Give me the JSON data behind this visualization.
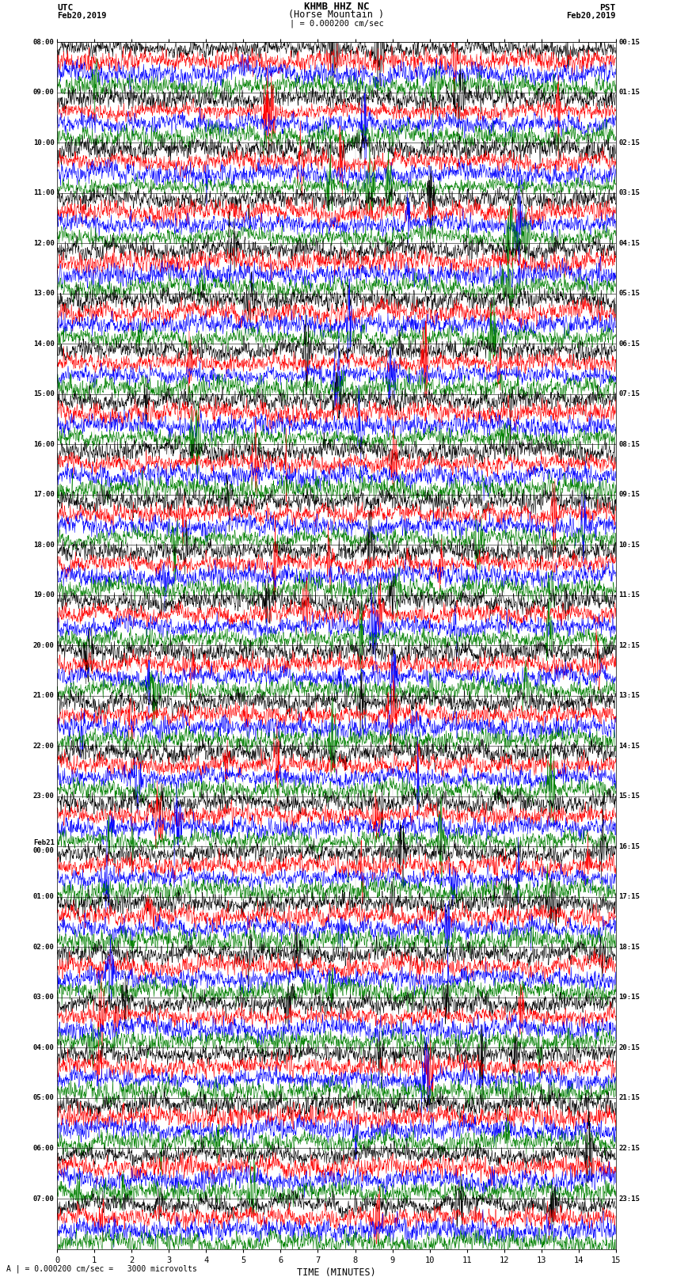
{
  "title_line1": "KHMB HHZ NC",
  "title_line2": "(Horse Mountain )",
  "title_scale": "| = 0.000200 cm/sec",
  "left_header_line1": "UTC",
  "left_header_line2": "Feb20,2019",
  "right_header_line1": "PST",
  "right_header_line2": "Feb20,2019",
  "xlabel": "TIME (MINUTES)",
  "bottom_note": "| = 0.000200 cm/sec =   3000 microvolts",
  "xmin": 0,
  "xmax": 15,
  "xticks": [
    0,
    1,
    2,
    3,
    4,
    5,
    6,
    7,
    8,
    9,
    10,
    11,
    12,
    13,
    14,
    15
  ],
  "bg_color": "white",
  "trace_color_cycle": [
    "black",
    "red",
    "blue",
    "green"
  ],
  "fig_width": 8.5,
  "fig_height": 16.13,
  "dpi": 100,
  "n_hours": 24,
  "traces_per_hour": 4,
  "left_times_utc": [
    "08:00",
    "09:00",
    "10:00",
    "11:00",
    "12:00",
    "13:00",
    "14:00",
    "15:00",
    "16:00",
    "17:00",
    "18:00",
    "19:00",
    "20:00",
    "21:00",
    "22:00",
    "23:00",
    "Feb21\n00:00",
    "01:00",
    "02:00",
    "03:00",
    "04:00",
    "05:00",
    "06:00",
    "07:00"
  ],
  "right_times_pst": [
    "00:15",
    "01:15",
    "02:15",
    "03:15",
    "04:15",
    "05:15",
    "06:15",
    "07:15",
    "08:15",
    "09:15",
    "10:15",
    "11:15",
    "12:15",
    "13:15",
    "14:15",
    "15:15",
    "16:15",
    "17:15",
    "18:15",
    "19:15",
    "20:15",
    "21:15",
    "22:15",
    "23:15"
  ],
  "minor_gridlines_per_minute": 1,
  "n_points_per_trace": 1800
}
